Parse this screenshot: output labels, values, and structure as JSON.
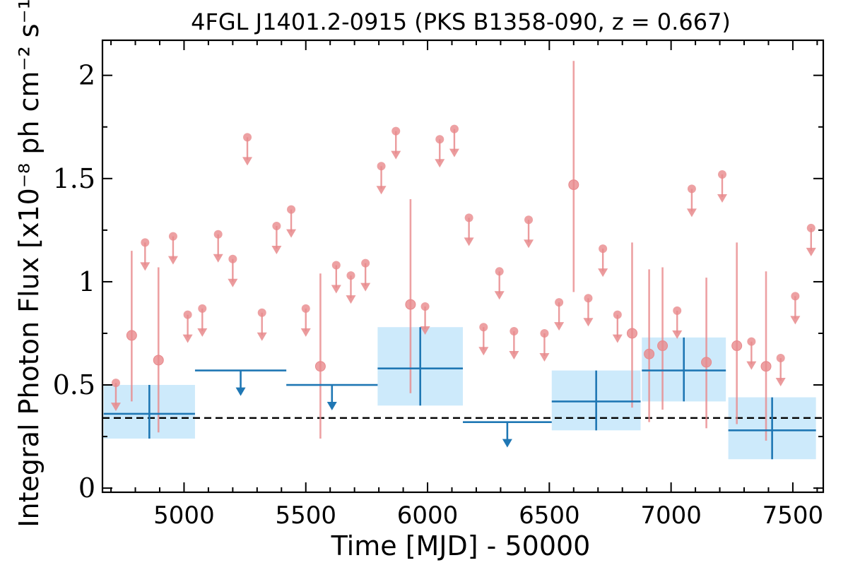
{
  "chart_data": {
    "type": "scatter",
    "title": "4FGL J1401.2-0915 (PKS B1358-090, z = 0.667)",
    "xlabel": "Time [MJD] - 50000",
    "ylabel": "Integral Photon Flux [x10⁻⁸ ph cm⁻² s⁻¹]",
    "xlim": [
      4665,
      7625
    ],
    "ylim": [
      -0.02,
      2.17
    ],
    "x_ticks": [
      5000,
      5500,
      6000,
      6500,
      7000,
      7500
    ],
    "y_ticks": [
      0,
      0.5,
      1,
      1.5,
      2
    ],
    "y_tick_labels": [
      "0",
      "0.5",
      "1",
      "1.5",
      "2"
    ],
    "colors": {
      "short_bins": "#e8898c",
      "long_bins": "#1f77b4",
      "long_band": "#cdeafb",
      "average": "#000000"
    },
    "average_flux": 0.34,
    "series": [
      {
        "kind": "detections",
        "points": [
          {
            "x": 4785,
            "y": 0.74,
            "lo": 0.42,
            "hi": 1.15
          },
          {
            "x": 4895,
            "y": 0.62,
            "lo": 0.27,
            "hi": 1.07
          },
          {
            "x": 5560,
            "y": 0.59,
            "lo": 0.24,
            "hi": 1.04
          },
          {
            "x": 5930,
            "y": 0.89,
            "lo": 0.46,
            "hi": 1.4
          },
          {
            "x": 6600,
            "y": 1.47,
            "lo": 0.95,
            "hi": 2.07
          },
          {
            "x": 6840,
            "y": 0.75,
            "lo": 0.39,
            "hi": 1.19
          },
          {
            "x": 6910,
            "y": 0.65,
            "lo": 0.32,
            "hi": 1.06
          },
          {
            "x": 6965,
            "y": 0.69,
            "lo": 0.38,
            "hi": 1.07
          },
          {
            "x": 7145,
            "y": 0.61,
            "lo": 0.29,
            "hi": 1.02
          },
          {
            "x": 7270,
            "y": 0.69,
            "lo": 0.31,
            "hi": 1.19
          },
          {
            "x": 7390,
            "y": 0.59,
            "lo": 0.23,
            "hi": 1.05
          }
        ]
      },
      {
        "kind": "upper_limits",
        "points": [
          {
            "x": 4720,
            "y": 0.51
          },
          {
            "x": 4840,
            "y": 1.19
          },
          {
            "x": 4955,
            "y": 1.22
          },
          {
            "x": 5015,
            "y": 0.84
          },
          {
            "x": 5075,
            "y": 0.87
          },
          {
            "x": 5140,
            "y": 1.23
          },
          {
            "x": 5200,
            "y": 1.11
          },
          {
            "x": 5260,
            "y": 1.7
          },
          {
            "x": 5320,
            "y": 0.85
          },
          {
            "x": 5380,
            "y": 1.27
          },
          {
            "x": 5440,
            "y": 1.35
          },
          {
            "x": 5500,
            "y": 0.87
          },
          {
            "x": 5625,
            "y": 1.08
          },
          {
            "x": 5685,
            "y": 1.03
          },
          {
            "x": 5745,
            "y": 1.09
          },
          {
            "x": 5810,
            "y": 1.56
          },
          {
            "x": 5870,
            "y": 1.73
          },
          {
            "x": 5990,
            "y": 0.88
          },
          {
            "x": 6050,
            "y": 1.69
          },
          {
            "x": 6110,
            "y": 1.74
          },
          {
            "x": 6170,
            "y": 1.31
          },
          {
            "x": 6230,
            "y": 0.78
          },
          {
            "x": 6295,
            "y": 1.05
          },
          {
            "x": 6355,
            "y": 0.76
          },
          {
            "x": 6415,
            "y": 1.3
          },
          {
            "x": 6480,
            "y": 0.75
          },
          {
            "x": 6540,
            "y": 0.9
          },
          {
            "x": 6720,
            "y": 1.16
          },
          {
            "x": 6660,
            "y": 0.92
          },
          {
            "x": 6780,
            "y": 0.84
          },
          {
            "x": 7025,
            "y": 0.86
          },
          {
            "x": 7085,
            "y": 1.45
          },
          {
            "x": 7210,
            "y": 1.52
          },
          {
            "x": 7330,
            "y": 0.71
          },
          {
            "x": 7450,
            "y": 0.63
          },
          {
            "x": 7510,
            "y": 0.93
          },
          {
            "x": 7575,
            "y": 1.26
          }
        ]
      },
      {
        "kind": "long_bins",
        "points": [
          {
            "x0": 4670,
            "x1": 5045,
            "y": 0.36,
            "lo": 0.24,
            "hi": 0.5
          },
          {
            "x0": 5795,
            "x1": 6145,
            "y": 0.58,
            "lo": 0.4,
            "hi": 0.78
          },
          {
            "x0": 6510,
            "x1": 6875,
            "y": 0.42,
            "lo": 0.28,
            "hi": 0.57
          },
          {
            "x0": 6880,
            "x1": 7225,
            "y": 0.57,
            "lo": 0.42,
            "hi": 0.73
          },
          {
            "x0": 7235,
            "x1": 7595,
            "y": 0.28,
            "lo": 0.14,
            "hi": 0.44
          }
        ]
      },
      {
        "kind": "long_upper_limits",
        "points": [
          {
            "x0": 5045,
            "x1": 5420,
            "y": 0.57
          },
          {
            "x0": 5420,
            "x1": 5795,
            "y": 0.5
          },
          {
            "x0": 6145,
            "x1": 6510,
            "y": 0.32
          }
        ]
      }
    ]
  }
}
